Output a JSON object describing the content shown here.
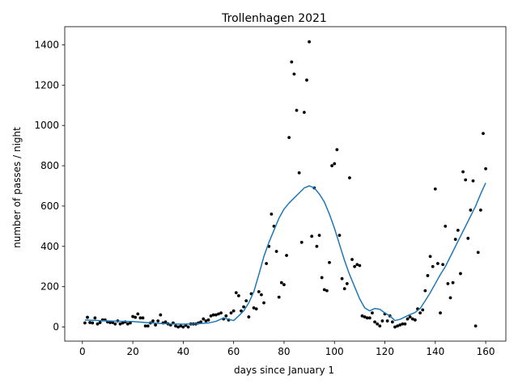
{
  "chart_data": {
    "type": "scatter",
    "title": "Trollenhagen 2021",
    "xlabel": "days since January 1",
    "ylabel": "number of passes / night",
    "xlim": [
      -7,
      168
    ],
    "ylim": [
      -70,
      1490
    ],
    "xticks": [
      0,
      20,
      40,
      60,
      80,
      100,
      120,
      140,
      160
    ],
    "yticks": [
      0,
      200,
      400,
      600,
      800,
      1000,
      1200,
      1400
    ],
    "grid": false,
    "legend": "none",
    "colors": {
      "points": "#000000",
      "trend": "#1f77b4"
    },
    "series": [
      {
        "type": "scatter",
        "points": [
          [
            1,
            20
          ],
          [
            2,
            48
          ],
          [
            3,
            22
          ],
          [
            4,
            20
          ],
          [
            5,
            45
          ],
          [
            6,
            15
          ],
          [
            7,
            22
          ],
          [
            8,
            35
          ],
          [
            9,
            35
          ],
          [
            10,
            25
          ],
          [
            11,
            22
          ],
          [
            12,
            22
          ],
          [
            13,
            15
          ],
          [
            14,
            30
          ],
          [
            15,
            15
          ],
          [
            16,
            20
          ],
          [
            17,
            25
          ],
          [
            18,
            15
          ],
          [
            19,
            20
          ],
          [
            20,
            52
          ],
          [
            21,
            48
          ],
          [
            22,
            65
          ],
          [
            23,
            45
          ],
          [
            24,
            45
          ],
          [
            25,
            5
          ],
          [
            26,
            5
          ],
          [
            27,
            20
          ],
          [
            28,
            30
          ],
          [
            29,
            10
          ],
          [
            30,
            30
          ],
          [
            31,
            60
          ],
          [
            32,
            20
          ],
          [
            33,
            25
          ],
          [
            34,
            15
          ],
          [
            35,
            10
          ],
          [
            36,
            20
          ],
          [
            37,
            5
          ],
          [
            38,
            0
          ],
          [
            39,
            5
          ],
          [
            40,
            0
          ],
          [
            41,
            8
          ],
          [
            42,
            0
          ],
          [
            43,
            15
          ],
          [
            44,
            15
          ],
          [
            45,
            15
          ],
          [
            46,
            20
          ],
          [
            47,
            25
          ],
          [
            48,
            40
          ],
          [
            49,
            30
          ],
          [
            50,
            35
          ],
          [
            51,
            55
          ],
          [
            52,
            60
          ],
          [
            53,
            60
          ],
          [
            54,
            65
          ],
          [
            55,
            70
          ],
          [
            56,
            40
          ],
          [
            57,
            55
          ],
          [
            58,
            35
          ],
          [
            59,
            70
          ],
          [
            60,
            80
          ],
          [
            61,
            170
          ],
          [
            62,
            155
          ],
          [
            63,
            80
          ],
          [
            64,
            100
          ],
          [
            65,
            130
          ],
          [
            66,
            50
          ],
          [
            67,
            165
          ],
          [
            68,
            95
          ],
          [
            69,
            90
          ],
          [
            70,
            175
          ],
          [
            71,
            160
          ],
          [
            72,
            120
          ],
          [
            73,
            315
          ],
          [
            74,
            400
          ],
          [
            75,
            560
          ],
          [
            76,
            500
          ],
          [
            77,
            375
          ],
          [
            78,
            148
          ],
          [
            79,
            220
          ],
          [
            80,
            210
          ],
          [
            81,
            355
          ],
          [
            82,
            940
          ],
          [
            83,
            1315
          ],
          [
            84,
            1255
          ],
          [
            85,
            1075
          ],
          [
            86,
            765
          ],
          [
            87,
            420
          ],
          [
            88,
            1065
          ],
          [
            89,
            1225
          ],
          [
            90,
            1415
          ],
          [
            91,
            450
          ],
          [
            92,
            690
          ],
          [
            93,
            400
          ],
          [
            94,
            455
          ],
          [
            95,
            245
          ],
          [
            96,
            185
          ],
          [
            97,
            180
          ],
          [
            98,
            320
          ],
          [
            99,
            800
          ],
          [
            100,
            810
          ],
          [
            101,
            880
          ],
          [
            102,
            455
          ],
          [
            103,
            240
          ],
          [
            104,
            190
          ],
          [
            105,
            215
          ],
          [
            106,
            740
          ],
          [
            107,
            335
          ],
          [
            108,
            300
          ],
          [
            109,
            310
          ],
          [
            110,
            305
          ],
          [
            111,
            55
          ],
          [
            112,
            50
          ],
          [
            113,
            45
          ],
          [
            114,
            45
          ],
          [
            115,
            70
          ],
          [
            116,
            25
          ],
          [
            117,
            15
          ],
          [
            118,
            5
          ],
          [
            119,
            30
          ],
          [
            120,
            65
          ],
          [
            121,
            30
          ],
          [
            122,
            55
          ],
          [
            123,
            25
          ],
          [
            124,
            0
          ],
          [
            125,
            5
          ],
          [
            126,
            10
          ],
          [
            127,
            15
          ],
          [
            128,
            15
          ],
          [
            129,
            40
          ],
          [
            130,
            50
          ],
          [
            131,
            40
          ],
          [
            132,
            35
          ],
          [
            133,
            90
          ],
          [
            134,
            70
          ],
          [
            135,
            85
          ],
          [
            136,
            180
          ],
          [
            137,
            255
          ],
          [
            138,
            350
          ],
          [
            139,
            300
          ],
          [
            140,
            685
          ],
          [
            141,
            315
          ],
          [
            142,
            70
          ],
          [
            143,
            310
          ],
          [
            144,
            500
          ],
          [
            145,
            215
          ],
          [
            146,
            145
          ],
          [
            147,
            220
          ],
          [
            148,
            435
          ],
          [
            149,
            480
          ],
          [
            150,
            265
          ],
          [
            151,
            770
          ],
          [
            152,
            730
          ],
          [
            153,
            440
          ],
          [
            154,
            580
          ],
          [
            155,
            725
          ],
          [
            156,
            5
          ],
          [
            157,
            370
          ],
          [
            158,
            580
          ],
          [
            159,
            960
          ],
          [
            160,
            785
          ]
        ]
      },
      {
        "type": "line",
        "points": [
          [
            1,
            35
          ],
          [
            5,
            33
          ],
          [
            10,
            30
          ],
          [
            15,
            28
          ],
          [
            20,
            27
          ],
          [
            25,
            22
          ],
          [
            30,
            18
          ],
          [
            35,
            15
          ],
          [
            40,
            14
          ],
          [
            45,
            16
          ],
          [
            50,
            20
          ],
          [
            53,
            28
          ],
          [
            56,
            45
          ],
          [
            58,
            38
          ],
          [
            60,
            32
          ],
          [
            62,
            55
          ],
          [
            64,
            80
          ],
          [
            66,
            120
          ],
          [
            68,
            175
          ],
          [
            70,
            260
          ],
          [
            72,
            350
          ],
          [
            74,
            420
          ],
          [
            76,
            480
          ],
          [
            78,
            540
          ],
          [
            80,
            585
          ],
          [
            82,
            615
          ],
          [
            84,
            640
          ],
          [
            86,
            665
          ],
          [
            88,
            690
          ],
          [
            90,
            700
          ],
          [
            92,
            690
          ],
          [
            94,
            660
          ],
          [
            96,
            620
          ],
          [
            98,
            560
          ],
          [
            100,
            490
          ],
          [
            102,
            410
          ],
          [
            104,
            330
          ],
          [
            106,
            260
          ],
          [
            108,
            200
          ],
          [
            110,
            140
          ],
          [
            112,
            95
          ],
          [
            114,
            80
          ],
          [
            116,
            92
          ],
          [
            118,
            88
          ],
          [
            120,
            70
          ],
          [
            122,
            55
          ],
          [
            124,
            32
          ],
          [
            126,
            38
          ],
          [
            128,
            50
          ],
          [
            130,
            62
          ],
          [
            132,
            72
          ],
          [
            134,
            92
          ],
          [
            136,
            130
          ],
          [
            138,
            170
          ],
          [
            140,
            215
          ],
          [
            142,
            260
          ],
          [
            144,
            300
          ],
          [
            146,
            350
          ],
          [
            148,
            400
          ],
          [
            150,
            450
          ],
          [
            152,
            500
          ],
          [
            154,
            550
          ],
          [
            156,
            600
          ],
          [
            158,
            660
          ],
          [
            160,
            715
          ]
        ]
      }
    ]
  }
}
